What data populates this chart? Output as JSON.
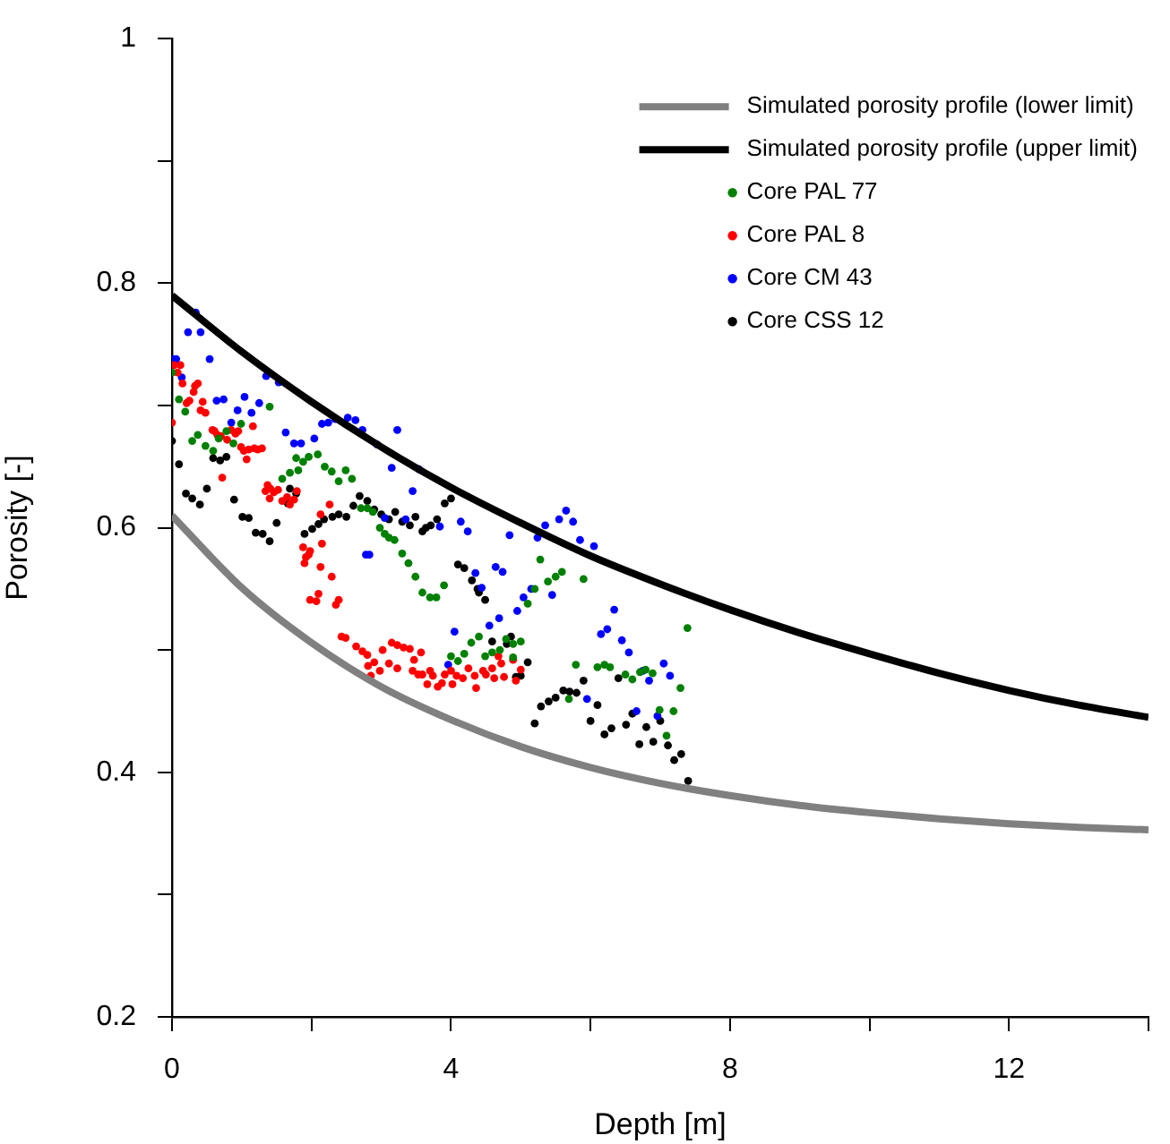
{
  "chart_data": {
    "type": "scatter",
    "xlabel": "Depth [m]",
    "ylabel": "Porosity [-]",
    "xlim": [
      0,
      14
    ],
    "ylim": [
      0.2,
      1
    ],
    "xticks": [
      0,
      {
        "value": 2,
        "label": null
      },
      4,
      {
        "value": 6,
        "label": null
      },
      8,
      {
        "value": 10,
        "label": null
      },
      12,
      {
        "value": 14,
        "label": null
      }
    ],
    "yticks": [
      0.2,
      {
        "value": 0.3,
        "label": null
      },
      0.4,
      {
        "value": 0.5,
        "label": null
      },
      0.6,
      {
        "value": 0.7,
        "label": null
      },
      0.8,
      {
        "value": 0.9,
        "label": null
      },
      1
    ],
    "legend": "top right",
    "series": [
      {
        "type": "line",
        "marker": "none",
        "line_style": "solid",
        "name": "Simulated porosity profile (lower limit)",
        "color": "#808080",
        "x": [
          0,
          1,
          2,
          3,
          4,
          5,
          6,
          7,
          8,
          9,
          10,
          11,
          12,
          13,
          14
        ],
        "values": [
          0.61,
          0.551,
          0.506,
          0.47,
          0.443,
          0.421,
          0.404,
          0.391,
          0.381,
          0.373,
          0.367,
          0.362,
          0.358,
          0.355,
          0.353
        ]
      },
      {
        "type": "line",
        "marker": "none",
        "line_style": "solid",
        "name": "Simulated porosity profile (upper limit)",
        "color": "#000000",
        "x": [
          0,
          1,
          2,
          3,
          4,
          5,
          6,
          7,
          8,
          9,
          10,
          11,
          12,
          13,
          14
        ],
        "values": [
          0.79,
          0.744,
          0.703,
          0.666,
          0.633,
          0.604,
          0.577,
          0.554,
          0.533,
          0.514,
          0.497,
          0.481,
          0.467,
          0.455,
          0.445
        ]
      },
      {
        "type": "scatter",
        "marker": "circle",
        "name": "Core PAL 77",
        "color": "#008000",
        "x": [
          0.0,
          0.1,
          0.19,
          0.29,
          0.37,
          0.48,
          0.59,
          0.67,
          0.78,
          0.99,
          1.4,
          0.88,
          1.78,
          1.88,
          1.96,
          2.09,
          1.58,
          1.69,
          1.81,
          2.19,
          2.29,
          2.39,
          2.49,
          2.58,
          2.71,
          2.8,
          2.88,
          2.98,
          3.05,
          3.11,
          3.19,
          3.3,
          3.39,
          3.49,
          3.59,
          3.7,
          3.79,
          3.9,
          4.0,
          4.1,
          4.19,
          4.29,
          4.4,
          4.49,
          4.59,
          4.7,
          4.79,
          4.89,
          4.89,
          5.0,
          5.28,
          5.39,
          5.5,
          5.59,
          5.1,
          5.2,
          5.69,
          5.9,
          5.79,
          6.1,
          6.2,
          6.28,
          6.5,
          6.6,
          6.71,
          6.79,
          6.89,
          7.29,
          7.39,
          6.99,
          7.19,
          7.09
        ],
        "values": [
          0.727,
          0.705,
          0.695,
          0.671,
          0.676,
          0.667,
          0.663,
          0.673,
          0.679,
          0.685,
          0.699,
          0.669,
          0.657,
          0.654,
          0.658,
          0.66,
          0.64,
          0.645,
          0.647,
          0.65,
          0.646,
          0.638,
          0.647,
          0.64,
          0.616,
          0.616,
          0.613,
          0.6,
          0.595,
          0.592,
          0.59,
          0.579,
          0.571,
          0.56,
          0.547,
          0.543,
          0.543,
          0.553,
          0.495,
          0.491,
          0.497,
          0.506,
          0.511,
          0.495,
          0.498,
          0.5,
          0.509,
          0.505,
          0.494,
          0.507,
          0.574,
          0.556,
          0.56,
          0.564,
          0.538,
          0.55,
          0.46,
          0.558,
          0.488,
          0.486,
          0.488,
          0.486,
          0.48,
          0.476,
          0.482,
          0.484,
          0.481,
          0.469,
          0.518,
          0.451,
          0.45,
          0.43
        ]
      },
      {
        "type": "scatter",
        "marker": "circle",
        "name": "Core PAL 8",
        "color": "#ff0000",
        "x": [
          0.12,
          0.03,
          0.08,
          0.15,
          0.25,
          0.21,
          0.33,
          0.37,
          0.31,
          0.44,
          0.41,
          0.48,
          0.0,
          0.61,
          0.65,
          0.7,
          0.58,
          0.85,
          0.91,
          0.95,
          1.16,
          0.79,
          0.99,
          1.03,
          1.1,
          1.18,
          1.23,
          1.29,
          1.07,
          0.72,
          1.37,
          1.41,
          1.34,
          1.46,
          1.52,
          1.4,
          1.58,
          1.65,
          1.79,
          1.75,
          1.69,
          2.26,
          2.13,
          1.88,
          1.98,
          2.15,
          1.96,
          1.9,
          1.92,
          2.13,
          2.29,
          2.1,
          1.98,
          2.07,
          2.39,
          2.35,
          2.43,
          2.49,
          2.64,
          2.73,
          2.8,
          2.81,
          2.9,
          2.98,
          2.85,
          3.02,
          3.15,
          3.23,
          3.32,
          3.41,
          3.11,
          3.23,
          3.47,
          3.45,
          3.57,
          3.53,
          3.59,
          3.7,
          3.74,
          3.66,
          3.81,
          3.87,
          3.91,
          4.0,
          4.08,
          4.02,
          4.17,
          4.25,
          4.34,
          4.36,
          4.46,
          4.59,
          4.68,
          4.72,
          4.76,
          4.62,
          4.5,
          4.89,
          4.93,
          5.0
        ],
        "values": [
          0.733,
          0.733,
          0.727,
          0.718,
          0.704,
          0.702,
          0.716,
          0.718,
          0.711,
          0.703,
          0.696,
          0.694,
          0.686,
          0.679,
          0.676,
          0.675,
          0.68,
          0.68,
          0.677,
          0.679,
          0.683,
          0.672,
          0.666,
          0.663,
          0.664,
          0.665,
          0.664,
          0.665,
          0.656,
          0.641,
          0.635,
          0.632,
          0.63,
          0.629,
          0.631,
          0.624,
          0.622,
          0.625,
          0.63,
          0.623,
          0.619,
          0.619,
          0.611,
          0.584,
          0.581,
          0.587,
          0.578,
          0.571,
          0.576,
          0.568,
          0.56,
          0.546,
          0.541,
          0.54,
          0.541,
          0.537,
          0.511,
          0.51,
          0.503,
          0.499,
          0.496,
          0.487,
          0.49,
          0.483,
          0.479,
          0.5,
          0.506,
          0.504,
          0.502,
          0.501,
          0.489,
          0.485,
          0.492,
          0.483,
          0.498,
          0.48,
          0.48,
          0.483,
          0.479,
          0.472,
          0.47,
          0.473,
          0.48,
          0.483,
          0.479,
          0.472,
          0.477,
          0.485,
          0.479,
          0.469,
          0.483,
          0.485,
          0.495,
          0.489,
          0.478,
          0.477,
          0.48,
          0.492,
          0.475,
          0.484
        ]
      },
      {
        "type": "scatter",
        "marker": "circle",
        "name": "Core CM 43",
        "color": "#0000ff",
        "x": [
          0.34,
          0.23,
          0.41,
          0.02,
          0.06,
          0.54,
          0.14,
          1.35,
          1.53,
          0.64,
          0.74,
          1.04,
          1.25,
          0.94,
          1.14,
          0.85,
          1.63,
          1.75,
          1.85,
          2.04,
          2.15,
          2.24,
          2.34,
          2.52,
          2.63,
          2.73,
          2.78,
          2.83,
          3.23,
          2.94,
          3.15,
          3.54,
          3.45,
          4.14,
          4.24,
          3.05,
          3.35,
          3.84,
          4.84,
          5.24,
          5.35,
          5.55,
          5.65,
          5.75,
          5.85,
          6.05,
          4.35,
          4.64,
          4.74,
          4.44,
          5.15,
          5.04,
          4.95,
          4.69,
          4.55,
          4.05,
          3.96,
          5.45,
          6.34,
          6.24,
          6.15,
          6.45,
          6.55,
          6.75,
          6.84,
          7.05,
          7.14,
          5.95,
          6.66,
          6.96
        ],
        "values": [
          0.776,
          0.76,
          0.76,
          0.738,
          0.738,
          0.738,
          0.723,
          0.724,
          0.719,
          0.704,
          0.705,
          0.707,
          0.702,
          0.696,
          0.694,
          0.686,
          0.678,
          0.669,
          0.669,
          0.673,
          0.685,
          0.686,
          0.689,
          0.69,
          0.688,
          0.68,
          0.578,
          0.578,
          0.68,
          0.668,
          0.649,
          0.648,
          0.63,
          0.605,
          0.597,
          0.608,
          0.607,
          0.601,
          0.594,
          0.592,
          0.602,
          0.607,
          0.614,
          0.605,
          0.59,
          0.585,
          0.563,
          0.568,
          0.564,
          0.551,
          0.55,
          0.543,
          0.532,
          0.526,
          0.52,
          0.515,
          0.488,
          0.545,
          0.533,
          0.517,
          0.513,
          0.508,
          0.498,
          0.483,
          0.475,
          0.489,
          0.479,
          0.46,
          0.45,
          0.446
        ]
      },
      {
        "type": "scatter",
        "marker": "circle",
        "name": "Core CSS 12",
        "color": "#000000",
        "x": [
          0.0,
          0.1,
          0.59,
          0.69,
          0.78,
          0.2,
          0.29,
          0.4,
          0.5,
          0.89,
          1.01,
          1.1,
          1.2,
          1.3,
          1.4,
          1.5,
          1.69,
          1.78,
          1.66,
          1.9,
          2.01,
          2.1,
          2.18,
          2.3,
          2.39,
          2.5,
          2.6,
          2.69,
          2.8,
          2.9,
          3.0,
          3.11,
          3.2,
          3.3,
          3.41,
          3.49,
          3.59,
          3.64,
          3.71,
          3.8,
          3.91,
          4.0,
          4.1,
          4.19,
          4.3,
          4.4,
          4.49,
          4.38,
          4.59,
          4.8,
          4.86,
          5.1,
          4.93,
          5.0,
          5.2,
          5.29,
          5.4,
          5.5,
          5.61,
          5.7,
          5.8,
          5.9,
          6.1,
          6.0,
          6.2,
          6.3,
          6.51,
          6.4,
          6.6,
          6.8,
          7.0,
          6.7,
          6.9,
          7.11,
          7.2,
          7.3,
          7.4
        ],
        "values": [
          0.671,
          0.652,
          0.657,
          0.655,
          0.658,
          0.628,
          0.624,
          0.619,
          0.632,
          0.623,
          0.609,
          0.608,
          0.596,
          0.595,
          0.589,
          0.604,
          0.632,
          0.628,
          0.62,
          0.595,
          0.599,
          0.603,
          0.607,
          0.609,
          0.611,
          0.609,
          0.618,
          0.626,
          0.622,
          0.615,
          0.611,
          0.607,
          0.613,
          0.605,
          0.602,
          0.609,
          0.597,
          0.6,
          0.602,
          0.607,
          0.62,
          0.624,
          0.57,
          0.567,
          0.557,
          0.547,
          0.541,
          0.55,
          0.507,
          0.505,
          0.511,
          0.49,
          0.478,
          0.479,
          0.44,
          0.454,
          0.458,
          0.461,
          0.467,
          0.466,
          0.465,
          0.475,
          0.455,
          0.442,
          0.431,
          0.436,
          0.439,
          0.477,
          0.448,
          0.437,
          0.442,
          0.423,
          0.425,
          0.422,
          0.41,
          0.415,
          0.393
        ]
      }
    ]
  }
}
